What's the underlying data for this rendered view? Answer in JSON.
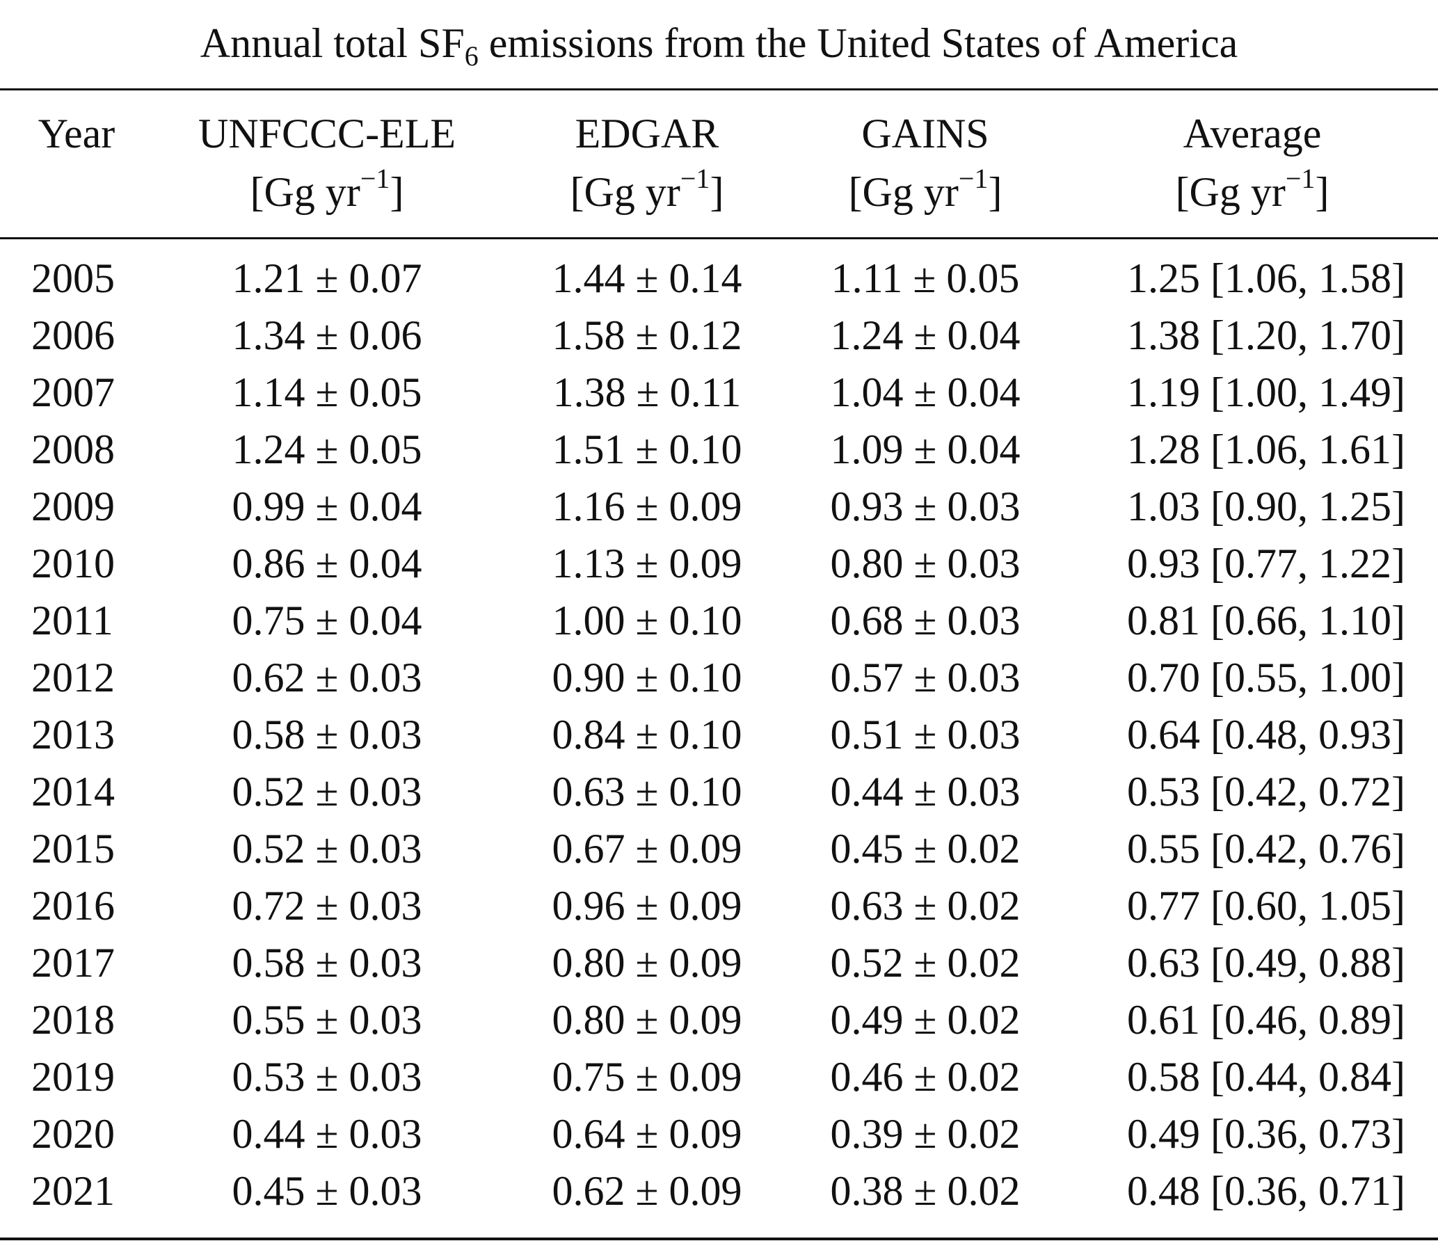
{
  "title": {
    "main": "Annual total SF",
    "subscript": "6",
    "rest": " emissions from the United States of America"
  },
  "headers": {
    "year": "Year",
    "unfccc": "UNFCCC-ELE",
    "edgar": "EDGAR",
    "gains": "GAINS",
    "average": "Average",
    "unit_base": "[Gg yr",
    "unit_exp": "−1",
    "unit_close": "]"
  },
  "rows": [
    {
      "year": "2005",
      "unfccc": "1.21 ± 0.07",
      "edgar": "1.44 ± 0.14",
      "gains": "1.11 ± 0.05",
      "average": "1.25 [1.06, 1.58]"
    },
    {
      "year": "2006",
      "unfccc": "1.34 ± 0.06",
      "edgar": "1.58 ± 0.12",
      "gains": "1.24 ± 0.04",
      "average": "1.38 [1.20, 1.70]"
    },
    {
      "year": "2007",
      "unfccc": "1.14 ± 0.05",
      "edgar": "1.38 ± 0.11",
      "gains": "1.04 ± 0.04",
      "average": "1.19 [1.00, 1.49]"
    },
    {
      "year": "2008",
      "unfccc": "1.24 ± 0.05",
      "edgar": "1.51 ± 0.10",
      "gains": "1.09 ± 0.04",
      "average": "1.28 [1.06, 1.61]"
    },
    {
      "year": "2009",
      "unfccc": "0.99 ± 0.04",
      "edgar": "1.16 ± 0.09",
      "gains": "0.93 ± 0.03",
      "average": "1.03 [0.90, 1.25]"
    },
    {
      "year": "2010",
      "unfccc": "0.86 ± 0.04",
      "edgar": "1.13 ± 0.09",
      "gains": "0.80 ± 0.03",
      "average": "0.93 [0.77, 1.22]"
    },
    {
      "year": "2011",
      "unfccc": "0.75 ± 0.04",
      "edgar": "1.00 ± 0.10",
      "gains": "0.68 ± 0.03",
      "average": "0.81 [0.66, 1.10]"
    },
    {
      "year": "2012",
      "unfccc": "0.62 ± 0.03",
      "edgar": "0.90 ± 0.10",
      "gains": "0.57 ± 0.03",
      "average": "0.70 [0.55, 1.00]"
    },
    {
      "year": "2013",
      "unfccc": "0.58 ± 0.03",
      "edgar": "0.84 ± 0.10",
      "gains": "0.51 ± 0.03",
      "average": "0.64 [0.48, 0.93]"
    },
    {
      "year": "2014",
      "unfccc": "0.52 ± 0.03",
      "edgar": "0.63 ± 0.10",
      "gains": "0.44 ± 0.03",
      "average": "0.53 [0.42, 0.72]"
    },
    {
      "year": "2015",
      "unfccc": "0.52 ± 0.03",
      "edgar": "0.67 ± 0.09",
      "gains": "0.45 ± 0.02",
      "average": "0.55 [0.42, 0.76]"
    },
    {
      "year": "2016",
      "unfccc": "0.72 ± 0.03",
      "edgar": "0.96 ± 0.09",
      "gains": "0.63 ± 0.02",
      "average": "0.77 [0.60, 1.05]"
    },
    {
      "year": "2017",
      "unfccc": "0.58 ± 0.03",
      "edgar": "0.80 ± 0.09",
      "gains": "0.52 ± 0.02",
      "average": "0.63 [0.49, 0.88]"
    },
    {
      "year": "2018",
      "unfccc": "0.55 ± 0.03",
      "edgar": "0.80 ± 0.09",
      "gains": "0.49 ± 0.02",
      "average": "0.61 [0.46, 0.89]"
    },
    {
      "year": "2019",
      "unfccc": "0.53 ± 0.03",
      "edgar": "0.75 ± 0.09",
      "gains": "0.46 ± 0.02",
      "average": "0.58 [0.44, 0.84]"
    },
    {
      "year": "2020",
      "unfccc": "0.44 ± 0.03",
      "edgar": "0.64 ± 0.09",
      "gains": "0.39 ± 0.02",
      "average": "0.49 [0.36, 0.73]"
    },
    {
      "year": "2021",
      "unfccc": "0.45 ± 0.03",
      "edgar": "0.62 ± 0.09",
      "gains": "0.38 ± 0.02",
      "average": "0.48 [0.36, 0.71]"
    }
  ]
}
